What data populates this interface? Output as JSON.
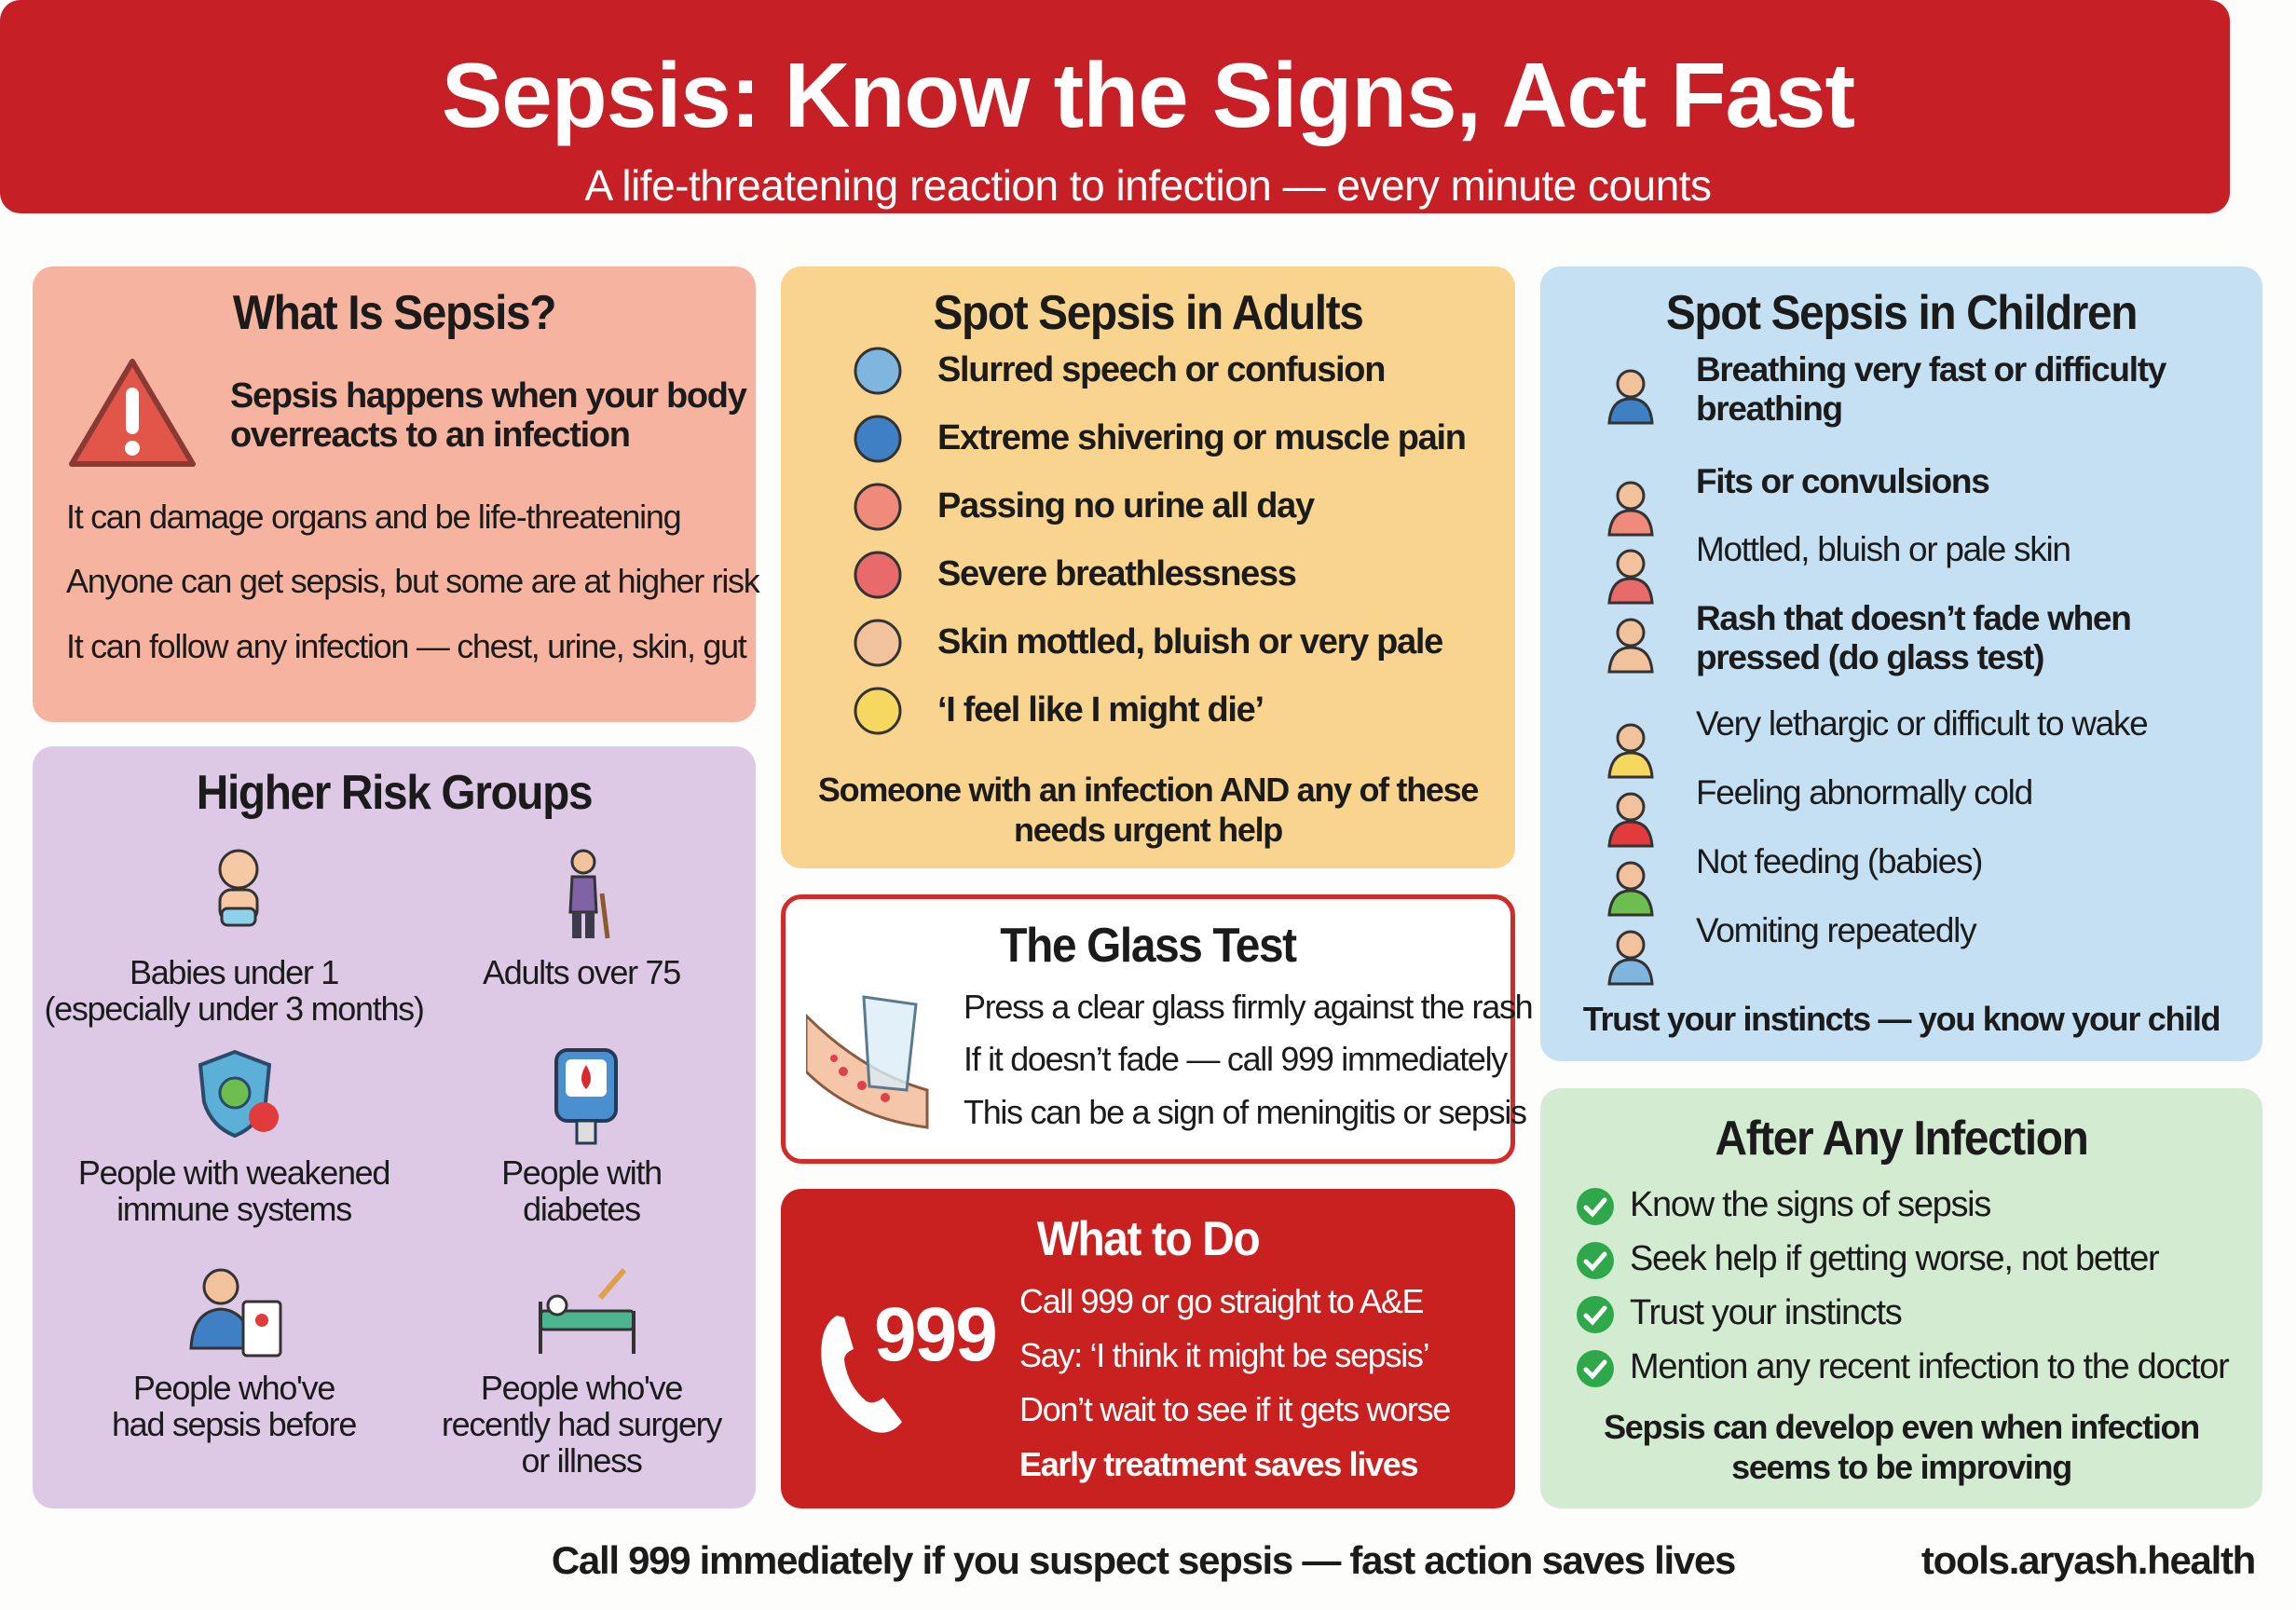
{
  "header": {
    "title": "Sepsis: Know the Signs, Act Fast",
    "subtitle": "A life-threatening reaction to infection — every minute counts"
  },
  "what_is": {
    "title": "What Is Sepsis?",
    "lead": [
      "Sepsis happens when your body",
      "overreacts to an infection"
    ],
    "points": [
      "It can damage organs and be life-threatening",
      "Anyone can get sepsis, but some are at higher risk",
      "It can follow any infection — chest, urine, skin, gut"
    ],
    "icon": "warning-triangle-icon"
  },
  "risk": {
    "title": "Higher Risk Groups",
    "groups": [
      {
        "lines": [
          "Babies under 1",
          "(especially under 3 months)"
        ],
        "icon": "baby-icon"
      },
      {
        "lines": [
          "Adults over 75"
        ],
        "icon": "elderly-person-icon"
      },
      {
        "lines": [
          "People with weakened",
          "immune systems"
        ],
        "icon": "shield-virus-icon"
      },
      {
        "lines": [
          "People with",
          "diabetes"
        ],
        "icon": "glucose-meter-icon"
      },
      {
        "lines": [
          "People who've",
          "had sepsis before"
        ],
        "icon": "patient-record-icon"
      },
      {
        "lines": [
          "People who've",
          "recently had surgery",
          "or illness"
        ],
        "icon": "hospital-bed-icon"
      }
    ]
  },
  "adults": {
    "title": "Spot Sepsis in Adults",
    "items": [
      {
        "label": "Slurred speech or confusion",
        "icon": "speech-bubble-icon"
      },
      {
        "label": "Extreme shivering or muscle pain",
        "icon": "shivering-person-icon"
      },
      {
        "label": "Passing no urine all day",
        "icon": "bladder-icon"
      },
      {
        "label": "Severe breathlessness",
        "icon": "lungs-icon"
      },
      {
        "label": "Skin mottled, bluish or very pale",
        "icon": "mottled-hand-icon"
      },
      {
        "label": "‘I feel like I might die’",
        "icon": "distressed-face-icon"
      }
    ],
    "note": [
      "Someone with an infection AND any of these",
      "needs urgent help"
    ]
  },
  "glass": {
    "title": "The Glass Test",
    "lines": [
      "Press a clear glass firmly against the rash",
      "If it doesn’t fade — call 999 immediately",
      "This can be a sign of meningitis or sepsis"
    ]
  },
  "what_to_do": {
    "title": "What to Do",
    "number": "999",
    "lines": [
      "Call 999 or go straight to A&E",
      "Say: ‘I think it might be sepsis’",
      "Don’t wait to see if it gets worse"
    ],
    "emphasis": "Early treatment saves lives"
  },
  "children": {
    "title": "Spot Sepsis in Children",
    "items": [
      {
        "lines": [
          "Breathing very fast or difficulty",
          "breathing"
        ],
        "bold": true,
        "icon": "child-lungs-icon"
      },
      {
        "lines": [
          "Fits or convulsions"
        ],
        "bold": true,
        "icon": "convulsing-child-icon"
      },
      {
        "lines": [
          "Mottled, bluish or pale skin"
        ],
        "bold": false,
        "icon": "mottled-leg-icon"
      },
      {
        "lines": [
          "Rash that doesn’t fade when",
          "pressed (do glass test)"
        ],
        "bold": true,
        "icon": "glass-rash-icon"
      },
      {
        "lines": [
          "Very lethargic or difficult to wake"
        ],
        "bold": false,
        "icon": "sleepy-child-icon"
      },
      {
        "lines": [
          "Feeling abnormally cold"
        ],
        "bold": false,
        "icon": "cold-child-icon"
      },
      {
        "lines": [
          "Not feeding (babies)"
        ],
        "bold": false,
        "icon": "baby-bottle-cross-icon"
      },
      {
        "lines": [
          "Vomiting repeatedly"
        ],
        "bold": false,
        "icon": "vomiting-child-icon"
      }
    ],
    "note": "Trust your instincts — you know your child"
  },
  "after": {
    "title": "After Any Infection",
    "items": [
      "Know the signs of sepsis",
      "Seek help if getting worse, not better",
      "Trust your instincts",
      "Mention any recent infection to the doctor"
    ],
    "note": [
      "Sepsis can develop even when infection",
      "seems to be improving"
    ]
  },
  "footer": {
    "message": "Call 999 immediately if you suspect sepsis — fast action saves lives",
    "site": "tools.aryash.health"
  },
  "colors": {
    "header": "#c62026",
    "what_is": "#f6b4a0",
    "risk": "#ddc9e6",
    "adults": "#f9d48e",
    "children": "#c5e0f2",
    "after": "#d3ebd0",
    "glass_border": "#d32a2a",
    "what_to_do": "#c9211f",
    "check": "#2ea84a"
  }
}
